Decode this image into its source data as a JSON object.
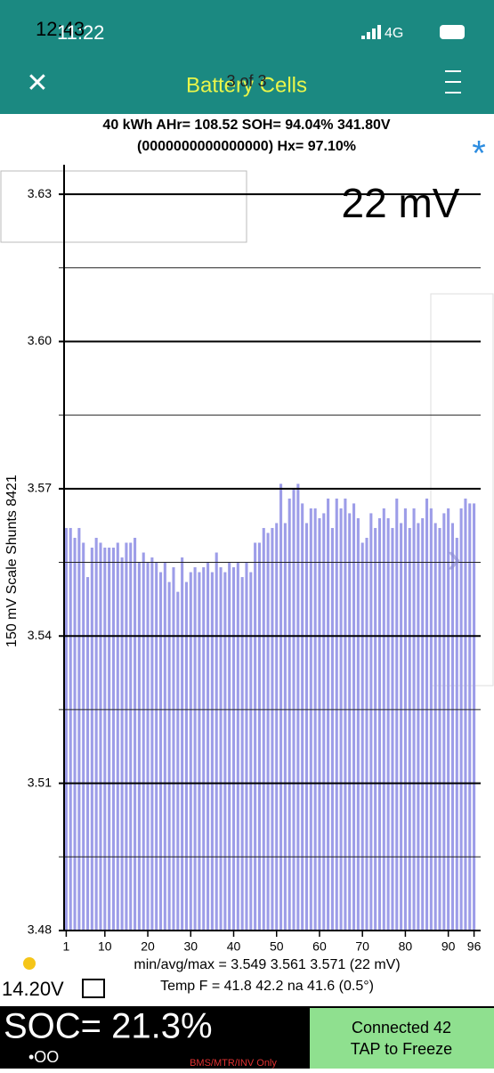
{
  "status_bar": {
    "time": "12:43",
    "time_overlay": "11:22",
    "network": "4G"
  },
  "header": {
    "title": "Battery Cells",
    "page": "3 of 3"
  },
  "info": {
    "line1": "40 kWh  AHr= 108.52  SOH= 94.04%   341.80V",
    "line2": "(0000000000000000)  Hx= 97.10%",
    "star": "*"
  },
  "chart_data": {
    "type": "bar",
    "spread_label": "22 mV",
    "ylabel": "150 mV Scale   Shunts 8421",
    "color": "#9d9de8",
    "categories": [
      1,
      2,
      3,
      4,
      5,
      6,
      7,
      8,
      9,
      10,
      11,
      12,
      13,
      14,
      15,
      16,
      17,
      18,
      19,
      20,
      21,
      22,
      23,
      24,
      25,
      26,
      27,
      28,
      29,
      30,
      31,
      32,
      33,
      34,
      35,
      36,
      37,
      38,
      39,
      40,
      41,
      42,
      43,
      44,
      45,
      46,
      47,
      48,
      49,
      50,
      51,
      52,
      53,
      54,
      55,
      56,
      57,
      58,
      59,
      60,
      61,
      62,
      63,
      64,
      65,
      66,
      67,
      68,
      69,
      70,
      71,
      72,
      73,
      74,
      75,
      76,
      77,
      78,
      79,
      80,
      81,
      82,
      83,
      84,
      85,
      86,
      87,
      88,
      89,
      90,
      91,
      92,
      93,
      94,
      95,
      96
    ],
    "values": [
      3.562,
      3.562,
      3.56,
      3.562,
      3.559,
      3.552,
      3.558,
      3.56,
      3.559,
      3.558,
      3.558,
      3.558,
      3.559,
      3.556,
      3.559,
      3.559,
      3.56,
      3.555,
      3.557,
      3.555,
      3.556,
      3.555,
      3.553,
      3.555,
      3.551,
      3.554,
      3.549,
      3.556,
      3.551,
      3.553,
      3.554,
      3.553,
      3.554,
      3.555,
      3.553,
      3.557,
      3.554,
      3.553,
      3.555,
      3.554,
      3.555,
      3.552,
      3.555,
      3.553,
      3.559,
      3.559,
      3.562,
      3.561,
      3.562,
      3.563,
      3.571,
      3.563,
      3.568,
      3.57,
      3.571,
      3.567,
      3.563,
      3.566,
      3.566,
      3.564,
      3.565,
      3.568,
      3.562,
      3.568,
      3.566,
      3.568,
      3.565,
      3.567,
      3.564,
      3.559,
      3.56,
      3.565,
      3.562,
      3.564,
      3.566,
      3.564,
      3.562,
      3.568,
      3.563,
      3.566,
      3.562,
      3.566,
      3.563,
      3.564,
      3.568,
      3.566,
      3.563,
      3.562,
      3.565,
      3.566,
      3.563,
      3.56,
      3.566,
      3.568,
      3.567,
      3.567
    ],
    "xlim": [
      0.5,
      96.5
    ],
    "xticks": [
      1,
      10,
      20,
      30,
      40,
      50,
      60,
      70,
      80,
      90,
      96
    ],
    "ylim": [
      3.48,
      3.636
    ],
    "yticks": [
      3.48,
      3.51,
      3.54,
      3.57,
      {
        "value": 3.6,
        "label": "3.60"
      },
      3.63
    ],
    "minor_yticks": [
      3.495,
      3.525,
      3.555,
      3.585,
      3.615
    ],
    "grid": true
  },
  "footer": {
    "stats": "min/avg/max = 3.549 3.561 3.571  (22 mV)",
    "temp": "Temp F = 41.8  42.2  na  41.6  (0.5°)",
    "voltage": "14.20V",
    "soc": "SOC= 21.3%",
    "dots": "•OO",
    "mode": "BMS/MTR/INV Only",
    "connected": "Connected 42",
    "freeze": "TAP to Freeze"
  }
}
